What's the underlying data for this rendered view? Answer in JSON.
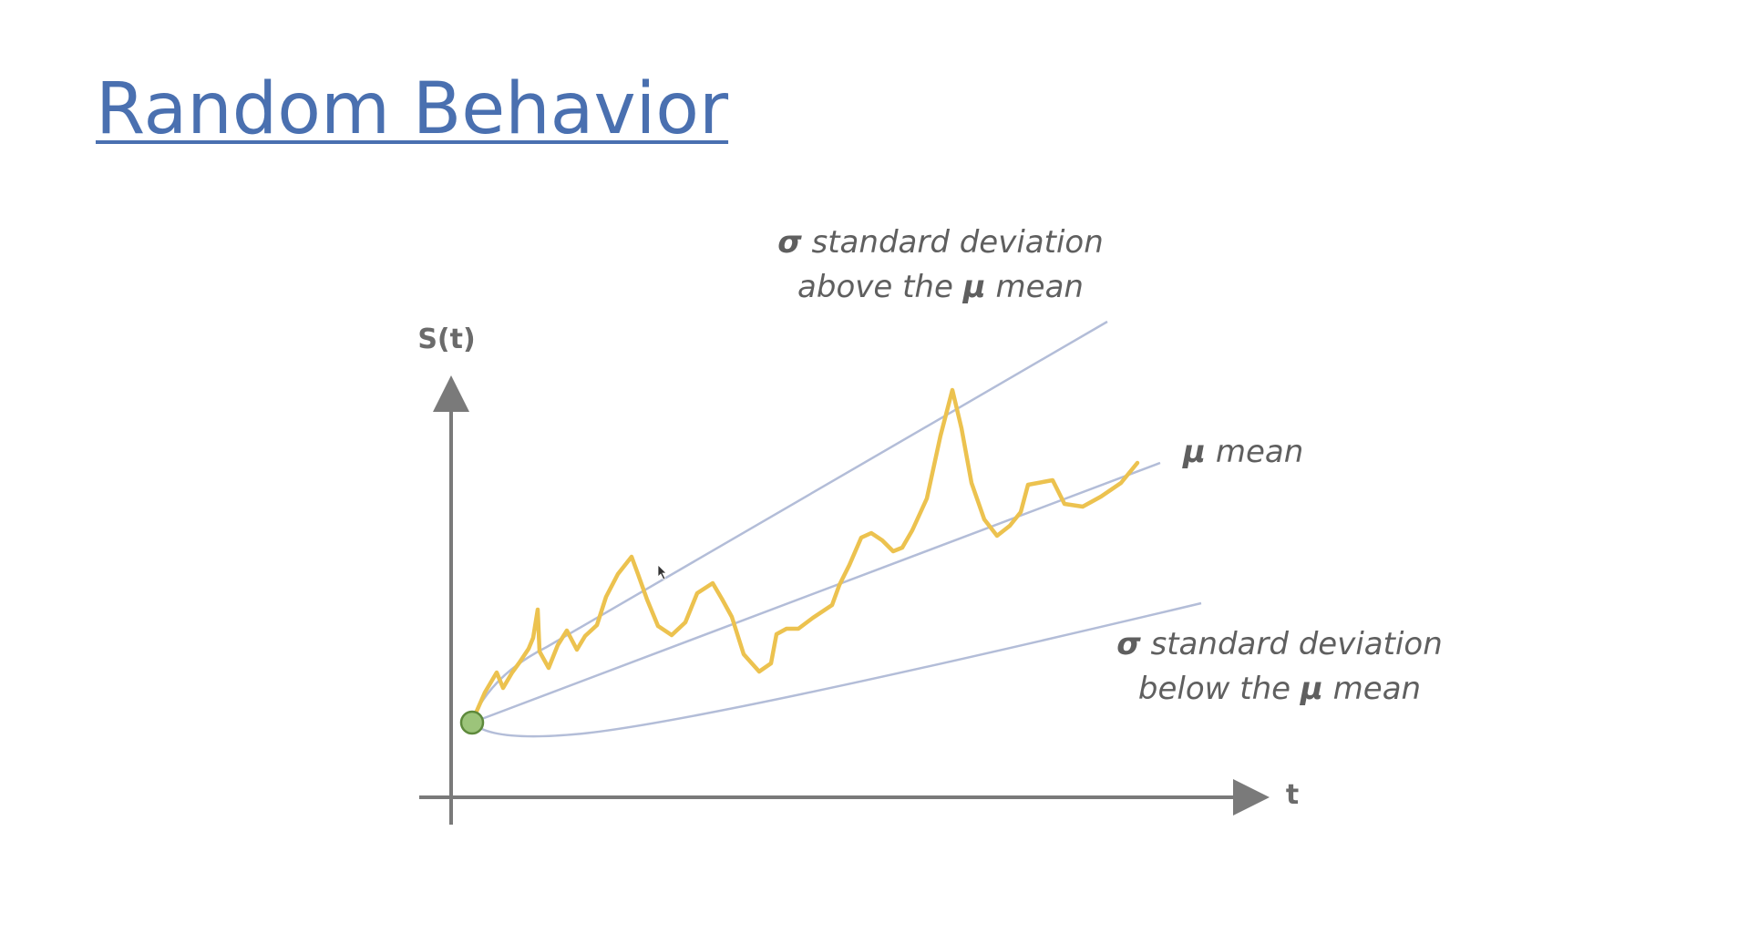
{
  "slide": {
    "title": "Random Behavior"
  },
  "diagram": {
    "y_axis_label": "S(t)",
    "x_axis_label": "t",
    "upper_label": {
      "symbol": "σ",
      "line1_text": " standard deviation",
      "line2_prefix": "above the ",
      "line2_symbol": "μ",
      "line2_suffix": " mean"
    },
    "mean_label": {
      "symbol": "μ",
      "text": " mean"
    },
    "lower_label": {
      "symbol": "σ",
      "line1_text": " standard deviation",
      "line2_prefix": "below the ",
      "line2_symbol": "μ",
      "line2_suffix": " mean"
    },
    "colors": {
      "axis": "#7a7a7a",
      "band_lines": "#b3bdd8",
      "random_path": "#ecc24f",
      "start_point_fill": "#9cc47a",
      "start_point_stroke": "#5e8a3c"
    }
  }
}
